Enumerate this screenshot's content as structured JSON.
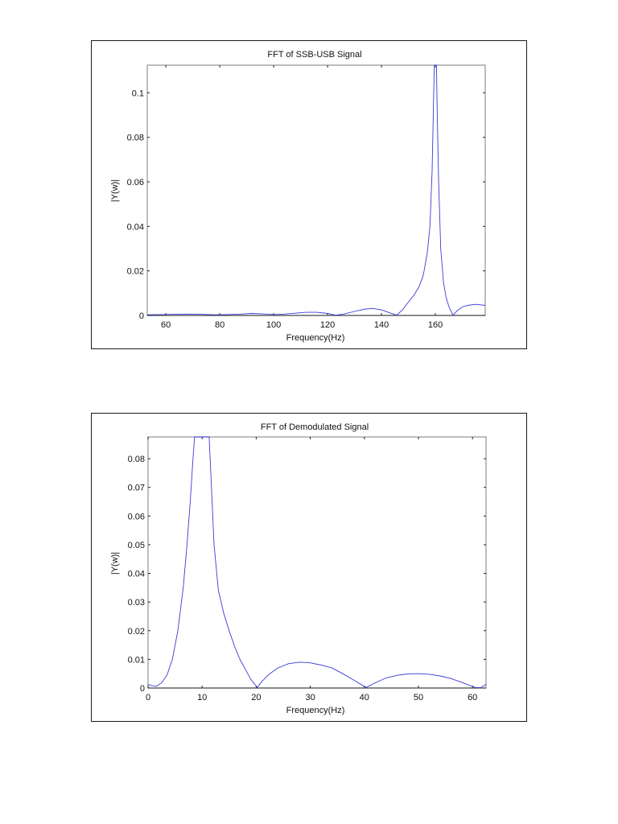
{
  "chart_data": [
    {
      "type": "line",
      "title": "FFT of SSB-USB Signal",
      "xlabel": "Frequency(Hz)",
      "ylabel": "|Y(w)|",
      "xlim": [
        53.1,
        178.5
      ],
      "ylim": [
        0,
        0.1124
      ],
      "xticks": [
        60,
        80,
        100,
        120,
        140,
        160
      ],
      "yticks": [
        0,
        0.02,
        0.04,
        0.06,
        0.08,
        0.1
      ],
      "xtick_labels": [
        "60",
        "80",
        "100",
        "120",
        "140",
        "160"
      ],
      "ytick_labels": [
        "0",
        "0.02",
        "0.04",
        "0.06",
        "0.08",
        "0.1"
      ],
      "grid": false,
      "legend": null,
      "line_color": "#3a3ad6",
      "series": [
        {
          "name": "|Y(w)|",
          "x": [
            53.1,
            58,
            63,
            68,
            73,
            78,
            83,
            88,
            92,
            96,
            100,
            104,
            108,
            112,
            116,
            120,
            123,
            126,
            130,
            134,
            137,
            140,
            143,
            145.7,
            148,
            150,
            152,
            154,
            155.5,
            157,
            158,
            158.8,
            159.3,
            159.6,
            160.4,
            160.7,
            161.2,
            162,
            163,
            164,
            165,
            166.5,
            168,
            170,
            172,
            175,
            178.5
          ],
          "y": [
            0.0003,
            0.0004,
            0.0005,
            0.0006,
            0.0005,
            0.0003,
            0.0004,
            0.0006,
            0.0009,
            0.0007,
            0.0004,
            0.0006,
            0.001,
            0.0014,
            0.0014,
            0.0009,
            0.0001,
            0.0006,
            0.0018,
            0.0029,
            0.0031,
            0.0025,
            0.0012,
            0.0001,
            0.0028,
            0.006,
            0.009,
            0.013,
            0.018,
            0.028,
            0.04,
            0.065,
            0.095,
            0.1124,
            0.1124,
            0.09,
            0.06,
            0.03,
            0.015,
            0.008,
            0.004,
            0.0001,
            0.002,
            0.0038,
            0.0045,
            0.005,
            0.0045
          ]
        }
      ]
    },
    {
      "type": "line",
      "title": "FFT of Demodulated Signal",
      "xlabel": "Frequency(Hz)",
      "ylabel": "|Y(w)|",
      "xlim": [
        0,
        62.5
      ],
      "ylim": [
        0,
        0.0876
      ],
      "xticks": [
        0,
        10,
        20,
        30,
        40,
        50,
        60
      ],
      "yticks": [
        0,
        0.01,
        0.02,
        0.03,
        0.04,
        0.05,
        0.06,
        0.07,
        0.08
      ],
      "xtick_labels": [
        "0",
        "10",
        "20",
        "30",
        "40",
        "50",
        "60"
      ],
      "ytick_labels": [
        "0",
        "0.01",
        "0.02",
        "0.03",
        "0.04",
        "0.05",
        "0.06",
        "0.07",
        "0.08"
      ],
      "grid": false,
      "legend": null,
      "line_color": "#3a3ad6",
      "series": [
        {
          "name": "|Y(w)|",
          "x": [
            0,
            0.8,
            1.5,
            2.5,
            3.5,
            4.5,
            5.5,
            6.5,
            7.2,
            7.8,
            8.3,
            8.6,
            11.3,
            11.6,
            12.2,
            13,
            14,
            15,
            16,
            17,
            18,
            19,
            20.2,
            21,
            22.5,
            24,
            26,
            28,
            30,
            32,
            34,
            36,
            38,
            40.3,
            42,
            44,
            46,
            48,
            50,
            52,
            54,
            56,
            58,
            60.5,
            61.5,
            62.5
          ],
          "y": [
            0.0012,
            0.0008,
            0.0006,
            0.0018,
            0.0045,
            0.01,
            0.02,
            0.035,
            0.05,
            0.065,
            0.08,
            0.0876,
            0.0876,
            0.075,
            0.05,
            0.034,
            0.026,
            0.02,
            0.0145,
            0.01,
            0.0065,
            0.003,
            0.0002,
            0.0022,
            0.005,
            0.007,
            0.0085,
            0.009,
            0.0088,
            0.008,
            0.007,
            0.005,
            0.0028,
            0.0002,
            0.0018,
            0.0035,
            0.0044,
            0.0049,
            0.005,
            0.0048,
            0.0042,
            0.0033,
            0.002,
            0.0002,
            0.0001,
            0.0013
          ]
        }
      ]
    }
  ]
}
